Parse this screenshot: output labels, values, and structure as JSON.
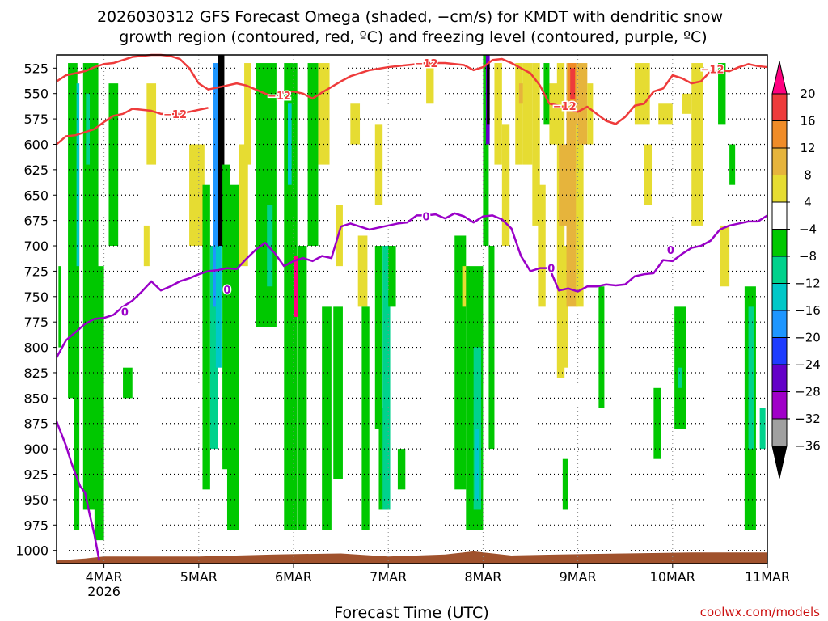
{
  "title": {
    "line1": "2026030312 GFS Forecast Omega (shaded, −cm/s) for KMDT with dendritic snow",
    "line2": "growth region (contoured, red, ºC) and freezing level (contoured, purple, ºC)"
  },
  "xlabel": "Forecast Time (UTC)",
  "credit": "coolwx.com/models",
  "colors": {
    "temp_contour": "#ee3b3b",
    "freezing_contour": "#9a00c8",
    "ground": "#a0522d",
    "grid": "#000000"
  },
  "chart_data": {
    "type": "heatmap",
    "title": "2026030312 GFS Forecast Omega (shaded, −cm/s) for KMDT with dendritic snow growth region (contoured, red, ºC) and freezing level (contoured, purple, ºC)",
    "xlabel": "Forecast Time (UTC)",
    "ylabel": "",
    "x_range": [
      3.5,
      11.0
    ],
    "x_units": "day of March 2026",
    "y_range": [
      1013,
      512
    ],
    "y_units": "hPa",
    "x_ticks": [
      {
        "value": 4,
        "label": "4MAR",
        "sublabel": "2026"
      },
      {
        "value": 5,
        "label": "5MAR"
      },
      {
        "value": 6,
        "label": "6MAR"
      },
      {
        "value": 7,
        "label": "7MAR"
      },
      {
        "value": 8,
        "label": "8MAR"
      },
      {
        "value": 9,
        "label": "9MAR"
      },
      {
        "value": 10,
        "label": "10MAR"
      },
      {
        "value": 11,
        "label": "11MAR"
      }
    ],
    "y_ticks": [
      "525",
      "550",
      "575",
      "600",
      "625",
      "650",
      "675",
      "700",
      "725",
      "750",
      "775",
      "800",
      "825",
      "850",
      "875",
      "900",
      "925",
      "950",
      "975",
      "1000"
    ],
    "grid": true,
    "colorbar": {
      "ticks": [
        "20",
        "16",
        "12",
        "8",
        "4",
        "−4",
        "−8",
        "−12",
        "−16",
        "−20",
        "−24",
        "−28",
        "−32",
        "−36"
      ],
      "colors": [
        "#ff0080",
        "#ee3b3b",
        "#f08c28",
        "#e6b43c",
        "#e6dc32",
        "#ffffff",
        "#00c800",
        "#00d28c",
        "#00c8c8",
        "#1e96ff",
        "#1e3cff",
        "#6400c8",
        "#a000c8",
        "#a0a0a0",
        "#000000"
      ]
    },
    "contour_labels": {
      "dendritic": "−12",
      "freezing": "0"
    },
    "dendritic_minus12_line": {
      "x": [
        3.5,
        3.6,
        3.7,
        3.8,
        3.9,
        4.0,
        4.1,
        4.2,
        4.3,
        4.5,
        4.6,
        4.7,
        4.8,
        4.9,
        5.0,
        5.1,
        5.2,
        5.3,
        5.4,
        5.5,
        5.6,
        5.7,
        5.8,
        5.9,
        6.0,
        6.1,
        6.2,
        6.3,
        6.5,
        6.6,
        6.8,
        7.0,
        7.2,
        7.4,
        7.6,
        7.8,
        7.9,
        8.0,
        8.1,
        8.2,
        8.3,
        8.4,
        8.5,
        8.6,
        8.7,
        8.8,
        8.9,
        9.0,
        9.1,
        9.2,
        9.3,
        9.4,
        9.5,
        9.6,
        9.7,
        9.8,
        9.9,
        10.0,
        10.1,
        10.2,
        10.3,
        10.4,
        10.5,
        10.6,
        10.7,
        10.8,
        10.9,
        11.0
      ],
      "y": [
        538,
        532,
        530,
        528,
        524,
        521,
        520,
        517,
        514,
        512,
        512,
        513,
        516,
        525,
        540,
        546,
        544,
        542,
        540,
        542,
        546,
        550,
        553,
        548,
        548,
        550,
        555,
        549,
        538,
        533,
        527,
        524,
        522,
        520,
        520,
        522,
        527,
        524,
        517,
        516,
        520,
        525,
        530,
        542,
        560,
        562,
        565,
        568,
        563,
        570,
        577,
        580,
        573,
        562,
        560,
        548,
        545,
        532,
        535,
        540,
        538,
        528,
        527,
        528,
        524,
        521,
        523,
        524
      ],
      "upper_branch": {
        "x": [
          3.5,
          3.6,
          3.7,
          3.8,
          3.9,
          4.0,
          4.1,
          4.2,
          4.3,
          4.4,
          4.5,
          4.6,
          4.7,
          4.8,
          4.9,
          5.0,
          5.1
        ],
        "y": [
          600,
          592,
          591,
          588,
          585,
          578,
          572,
          570,
          565,
          566,
          567,
          570,
          570,
          570,
          568,
          566,
          564
        ]
      }
    },
    "freezing_line": {
      "x": [
        3.5,
        3.6,
        3.7,
        3.8,
        3.9,
        4.0,
        4.1,
        4.2,
        4.3,
        4.4,
        4.5,
        4.6,
        4.7,
        4.8,
        4.9,
        5.0,
        5.1,
        5.2,
        5.3,
        5.4,
        5.5,
        5.6,
        5.7,
        5.8,
        5.9,
        6.0,
        6.1,
        6.2,
        6.3,
        6.4,
        6.5,
        6.6,
        6.7,
        6.8,
        6.9,
        7.0,
        7.1,
        7.2,
        7.3,
        7.4,
        7.5,
        7.6,
        7.7,
        7.8,
        7.9,
        8.0,
        8.1,
        8.2,
        8.3,
        8.4,
        8.5,
        8.6,
        8.7,
        8.8,
        8.9,
        9.0,
        9.1,
        9.2,
        9.3,
        9.4,
        9.5,
        9.6,
        9.7,
        9.8,
        9.9,
        10.0,
        10.1,
        10.2,
        10.3,
        10.4,
        10.5,
        10.6,
        10.7,
        10.8,
        10.9,
        11.0
      ],
      "y": [
        810,
        793,
        785,
        777,
        772,
        771,
        768,
        760,
        754,
        745,
        735,
        744,
        740,
        735,
        732,
        728,
        725,
        724,
        722,
        723,
        713,
        704,
        697,
        707,
        720,
        715,
        712,
        715,
        710,
        712,
        681,
        678,
        681,
        684,
        682,
        680,
        678,
        677,
        670,
        670,
        669,
        673,
        668,
        671,
        677,
        671,
        670,
        674,
        683,
        710,
        725,
        722,
        722,
        744,
        742,
        745,
        740,
        740,
        738,
        739,
        738,
        730,
        728,
        727,
        714,
        715,
        708,
        702,
        700,
        695,
        684,
        680,
        678,
        676,
        676,
        670
      ]
    },
    "freezing_line_lower": {
      "x": [
        3.5,
        3.55,
        3.6,
        3.65,
        3.7,
        3.75,
        3.8,
        3.85,
        3.9,
        3.95
      ],
      "y": [
        873,
        885,
        897,
        912,
        925,
        937,
        943,
        965,
        985,
        1010
      ]
    },
    "omega_cells": [
      {
        "t0": 3.52,
        "t1": 3.55,
        "p0": 720,
        "p1": 800,
        "v": -8
      },
      {
        "t0": 3.62,
        "t1": 3.72,
        "p0": 520,
        "p1": 850,
        "v": -8
      },
      {
        "t0": 3.68,
        "t1": 3.74,
        "p0": 600,
        "p1": 980,
        "v": -8
      },
      {
        "t0": 3.71,
        "t1": 3.74,
        "p0": 540,
        "p1": 720,
        "v": -16
      },
      {
        "t0": 3.78,
        "t1": 3.94,
        "p0": 520,
        "p1": 960,
        "v": -8
      },
      {
        "t0": 3.81,
        "t1": 3.85,
        "p0": 550,
        "p1": 620,
        "v": -12
      },
      {
        "t0": 3.9,
        "t1": 4.0,
        "p0": 720,
        "p1": 990,
        "v": -8
      },
      {
        "t0": 4.05,
        "t1": 4.15,
        "p0": 540,
        "p1": 700,
        "v": -8
      },
      {
        "t0": 4.2,
        "t1": 4.3,
        "p0": 820,
        "p1": 850,
        "v": -8
      },
      {
        "t0": 4.45,
        "t1": 4.55,
        "p0": 540,
        "p1": 620,
        "v": 4
      },
      {
        "t0": 4.42,
        "t1": 4.48,
        "p0": 680,
        "p1": 720,
        "v": 4
      },
      {
        "t0": 4.9,
        "t1": 5.06,
        "p0": 600,
        "p1": 700,
        "v": 4
      },
      {
        "t0": 5.04,
        "t1": 5.12,
        "p0": 640,
        "p1": 940,
        "v": -8
      },
      {
        "t0": 5.12,
        "t1": 5.2,
        "p0": 700,
        "p1": 900,
        "v": -12
      },
      {
        "t0": 5.15,
        "t1": 5.2,
        "p0": 520,
        "p1": 760,
        "v": -20
      },
      {
        "t0": 5.18,
        "t1": 5.24,
        "p0": 700,
        "p1": 820,
        "v": -16
      },
      {
        "t0": 5.2,
        "t1": 5.27,
        "p0": 512,
        "p1": 700,
        "v": -36
      },
      {
        "t0": 5.25,
        "t1": 5.33,
        "p0": 620,
        "p1": 920,
        "v": -8
      },
      {
        "t0": 5.3,
        "t1": 5.42,
        "p0": 640,
        "p1": 980,
        "v": -8
      },
      {
        "t0": 5.42,
        "t1": 5.52,
        "p0": 600,
        "p1": 720,
        "v": 4
      },
      {
        "t0": 5.48,
        "t1": 5.55,
        "p0": 520,
        "p1": 620,
        "v": 4
      },
      {
        "t0": 5.6,
        "t1": 5.82,
        "p0": 520,
        "p1": 780,
        "v": -8
      },
      {
        "t0": 5.72,
        "t1": 5.78,
        "p0": 660,
        "p1": 740,
        "v": -12
      },
      {
        "t0": 5.9,
        "t1": 6.04,
        "p0": 520,
        "p1": 980,
        "v": -8
      },
      {
        "t0": 5.94,
        "t1": 5.98,
        "p0": 560,
        "p1": 640,
        "v": -16
      },
      {
        "t0": 6.0,
        "t1": 6.05,
        "p0": 710,
        "p1": 770,
        "v": 20
      },
      {
        "t0": 6.05,
        "t1": 6.14,
        "p0": 700,
        "p1": 980,
        "v": -8
      },
      {
        "t0": 6.15,
        "t1": 6.26,
        "p0": 520,
        "p1": 700,
        "v": -8
      },
      {
        "t0": 6.26,
        "t1": 6.38,
        "p0": 520,
        "p1": 620,
        "v": 4
      },
      {
        "t0": 6.3,
        "t1": 6.4,
        "p0": 760,
        "p1": 980,
        "v": -8
      },
      {
        "t0": 6.42,
        "t1": 6.52,
        "p0": 760,
        "p1": 930,
        "v": -8
      },
      {
        "t0": 6.45,
        "t1": 6.52,
        "p0": 660,
        "p1": 720,
        "v": 4
      },
      {
        "t0": 6.6,
        "t1": 6.7,
        "p0": 560,
        "p1": 600,
        "v": 4
      },
      {
        "t0": 6.68,
        "t1": 6.78,
        "p0": 690,
        "p1": 760,
        "v": 4
      },
      {
        "t0": 6.72,
        "t1": 6.8,
        "p0": 760,
        "p1": 980,
        "v": -8
      },
      {
        "t0": 6.86,
        "t1": 6.94,
        "p0": 700,
        "p1": 880,
        "v": -8
      },
      {
        "t0": 6.86,
        "t1": 6.94,
        "p0": 580,
        "p1": 660,
        "v": 4
      },
      {
        "t0": 6.9,
        "t1": 7.0,
        "p0": 860,
        "p1": 960,
        "v": -8
      },
      {
        "t0": 6.94,
        "t1": 7.02,
        "p0": 700,
        "p1": 960,
        "v": -12
      },
      {
        "t0": 7.0,
        "t1": 7.08,
        "p0": 700,
        "p1": 760,
        "v": -8
      },
      {
        "t0": 7.1,
        "t1": 7.18,
        "p0": 900,
        "p1": 940,
        "v": -8
      },
      {
        "t0": 7.4,
        "t1": 7.48,
        "p0": 520,
        "p1": 560,
        "v": 4
      },
      {
        "t0": 7.7,
        "t1": 7.82,
        "p0": 690,
        "p1": 940,
        "v": -8
      },
      {
        "t0": 7.78,
        "t1": 7.86,
        "p0": 720,
        "p1": 760,
        "v": 4
      },
      {
        "t0": 7.82,
        "t1": 8.0,
        "p0": 720,
        "p1": 980,
        "v": -8
      },
      {
        "t0": 7.9,
        "t1": 7.98,
        "p0": 800,
        "p1": 960,
        "v": -12
      },
      {
        "t0": 7.92,
        "t1": 7.96,
        "p0": 880,
        "p1": 950,
        "v": -16
      },
      {
        "t0": 8.0,
        "t1": 8.06,
        "p0": 512,
        "p1": 700,
        "v": -8
      },
      {
        "t0": 8.03,
        "t1": 8.07,
        "p0": 512,
        "p1": 600,
        "v": -28
      },
      {
        "t0": 8.04,
        "t1": 8.07,
        "p0": 520,
        "p1": 580,
        "v": -36
      },
      {
        "t0": 8.06,
        "t1": 8.12,
        "p0": 700,
        "p1": 900,
        "v": -8
      },
      {
        "t0": 8.12,
        "t1": 8.2,
        "p0": 520,
        "p1": 620,
        "v": 4
      },
      {
        "t0": 8.2,
        "t1": 8.28,
        "p0": 580,
        "p1": 700,
        "v": 4
      },
      {
        "t0": 8.34,
        "t1": 8.42,
        "p0": 520,
        "p1": 620,
        "v": 4
      },
      {
        "t0": 8.38,
        "t1": 8.46,
        "p0": 540,
        "p1": 560,
        "v": 8
      },
      {
        "t0": 8.42,
        "t1": 8.52,
        "p0": 520,
        "p1": 620,
        "v": 4
      },
      {
        "t0": 8.52,
        "t1": 8.6,
        "p0": 520,
        "p1": 680,
        "v": 4
      },
      {
        "t0": 8.58,
        "t1": 8.66,
        "p0": 640,
        "p1": 760,
        "v": 4
      },
      {
        "t0": 8.64,
        "t1": 8.7,
        "p0": 520,
        "p1": 580,
        "v": -8
      },
      {
        "t0": 8.7,
        "t1": 8.8,
        "p0": 540,
        "p1": 600,
        "v": 4
      },
      {
        "t0": 8.78,
        "t1": 8.86,
        "p0": 520,
        "p1": 830,
        "v": 4
      },
      {
        "t0": 8.8,
        "t1": 8.9,
        "p0": 600,
        "p1": 680,
        "v": 8
      },
      {
        "t0": 8.84,
        "t1": 8.9,
        "p0": 700,
        "p1": 820,
        "v": 4
      },
      {
        "t0": 8.88,
        "t1": 9.0,
        "p0": 520,
        "p1": 760,
        "v": 8
      },
      {
        "t0": 8.9,
        "t1": 8.98,
        "p0": 520,
        "p1": 560,
        "v": 12
      },
      {
        "t0": 8.92,
        "t1": 8.97,
        "p0": 525,
        "p1": 555,
        "v": 16
      },
      {
        "t0": 8.98,
        "t1": 9.06,
        "p0": 580,
        "p1": 760,
        "v": 4
      },
      {
        "t0": 9.0,
        "t1": 9.1,
        "p0": 520,
        "p1": 600,
        "v": 8
      },
      {
        "t0": 9.1,
        "t1": 9.16,
        "p0": 540,
        "p1": 600,
        "v": 4
      },
      {
        "t0": 9.22,
        "t1": 9.28,
        "p0": 740,
        "p1": 860,
        "v": -8
      },
      {
        "t0": 8.84,
        "t1": 8.9,
        "p0": 910,
        "p1": 960,
        "v": -8
      },
      {
        "t0": 9.6,
        "t1": 9.76,
        "p0": 520,
        "p1": 580,
        "v": 4
      },
      {
        "t0": 9.7,
        "t1": 9.78,
        "p0": 600,
        "p1": 660,
        "v": 4
      },
      {
        "t0": 9.8,
        "t1": 9.88,
        "p0": 840,
        "p1": 910,
        "v": -8
      },
      {
        "t0": 9.85,
        "t1": 10.0,
        "p0": 560,
        "p1": 580,
        "v": 4
      },
      {
        "t0": 10.02,
        "t1": 10.14,
        "p0": 760,
        "p1": 880,
        "v": -8
      },
      {
        "t0": 10.06,
        "t1": 10.1,
        "p0": 820,
        "p1": 840,
        "v": -12
      },
      {
        "t0": 10.1,
        "t1": 10.2,
        "p0": 550,
        "p1": 570,
        "v": 4
      },
      {
        "t0": 10.2,
        "t1": 10.32,
        "p0": 520,
        "p1": 680,
        "v": 4
      },
      {
        "t0": 10.48,
        "t1": 10.56,
        "p0": 520,
        "p1": 580,
        "v": -8
      },
      {
        "t0": 10.5,
        "t1": 10.6,
        "p0": 680,
        "p1": 740,
        "v": 4
      },
      {
        "t0": 10.6,
        "t1": 10.66,
        "p0": 600,
        "p1": 640,
        "v": -8
      },
      {
        "t0": 10.76,
        "t1": 10.88,
        "p0": 740,
        "p1": 980,
        "v": -8
      },
      {
        "t0": 10.8,
        "t1": 10.86,
        "p0": 760,
        "p1": 900,
        "v": -12
      },
      {
        "t0": 10.92,
        "t1": 10.98,
        "p0": 860,
        "p1": 900,
        "v": -12
      }
    ],
    "ground_top_hpa": [
      {
        "t": 3.5,
        "p": 1010
      },
      {
        "t": 3.8,
        "p": 1008
      },
      {
        "t": 4.0,
        "p": 1006
      },
      {
        "t": 5.0,
        "p": 1006
      },
      {
        "t": 5.8,
        "p": 1004
      },
      {
        "t": 6.5,
        "p": 1003
      },
      {
        "t": 7.0,
        "p": 1006
      },
      {
        "t": 7.6,
        "p": 1004
      },
      {
        "t": 7.9,
        "p": 1001
      },
      {
        "t": 8.3,
        "p": 1005
      },
      {
        "t": 8.8,
        "p": 1004
      },
      {
        "t": 9.5,
        "p": 1003
      },
      {
        "t": 10.2,
        "p": 1002
      },
      {
        "t": 11.0,
        "p": 1002
      }
    ]
  }
}
